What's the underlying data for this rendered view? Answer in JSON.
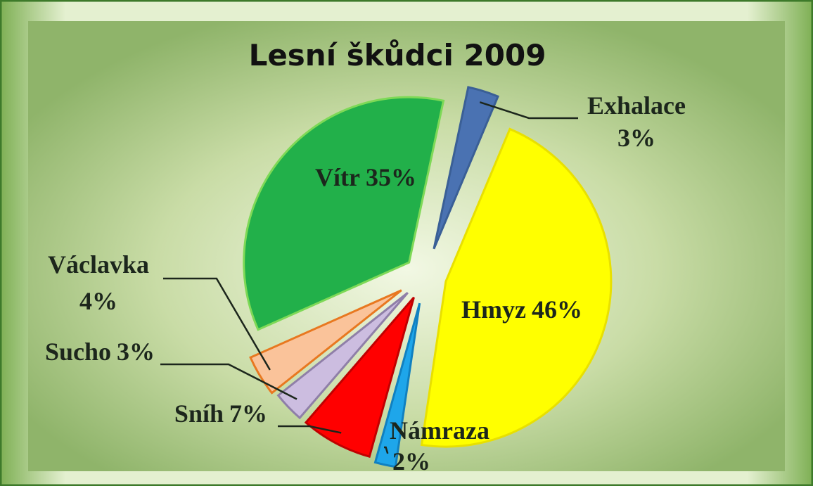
{
  "chart_data": {
    "type": "pie",
    "title": "Lesní škůdci 2009",
    "categories": [
      "Exhalace",
      "Hmyz",
      "Námraza",
      "Sníh",
      "Sucho",
      "Václavka",
      "Vítr"
    ],
    "values": [
      3,
      46,
      2,
      7,
      3,
      4,
      35
    ],
    "value_labels": [
      "3%",
      "46%",
      "2%",
      "7%",
      "3%",
      "4%",
      "35%"
    ],
    "colors": [
      "#4a72b2",
      "#ffff00",
      "#1ea6ea",
      "#ff0000",
      "#ccbde0",
      "#fac39a",
      "#22b04a"
    ]
  }
}
